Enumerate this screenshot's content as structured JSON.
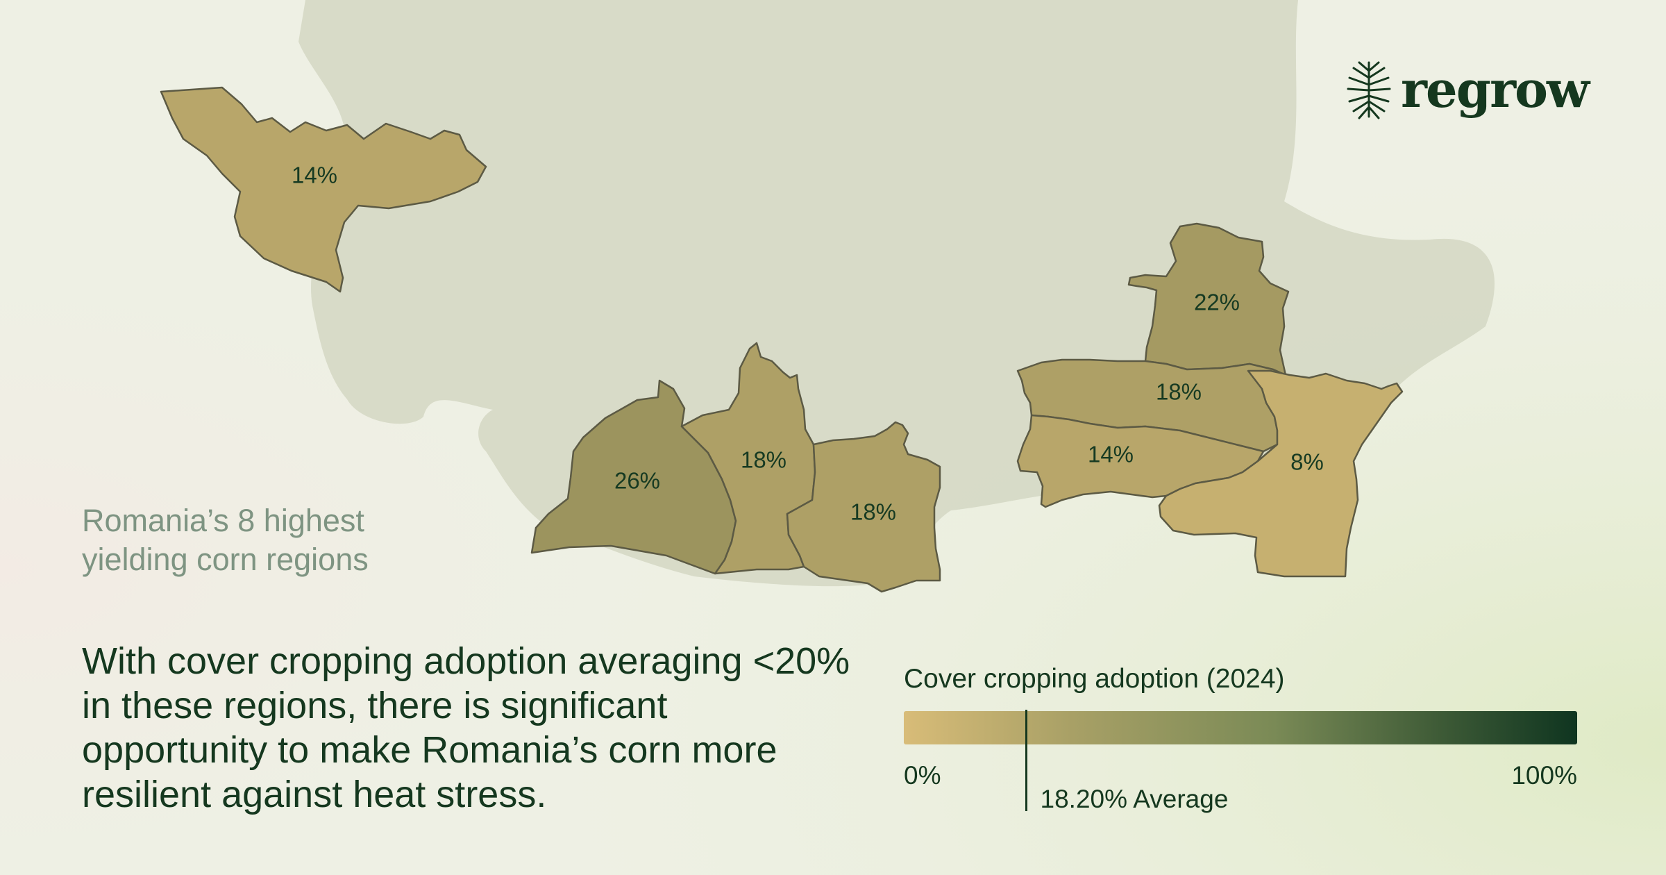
{
  "logo": {
    "text": "regrow",
    "icon": "tree-roots-icon"
  },
  "subtitle": "Romania’s 8 highest yielding corn regions",
  "headline": "With cover cropping adoption averaging <20% in these regions, there is significant opportunity to make Romania’s corn more resilient against heat stress.",
  "legend": {
    "title": "Cover cropping adoption (2024)",
    "min_label": "0%",
    "max_label": "100%",
    "average_label": "18.20% Average",
    "average_value": 18.2,
    "scale_min": 0,
    "scale_max": 100
  },
  "regions": [
    {
      "id": "nw",
      "label": "14%",
      "value": 14
    },
    {
      "id": "sw-a",
      "label": "26%",
      "value": 26
    },
    {
      "id": "sw-b",
      "label": "18%",
      "value": 18
    },
    {
      "id": "sw-c",
      "label": "18%",
      "value": 18
    },
    {
      "id": "se-north",
      "label": "22%",
      "value": 22
    },
    {
      "id": "se-mid",
      "label": "18%",
      "value": 18
    },
    {
      "id": "se-southwest",
      "label": "14%",
      "value": 14
    },
    {
      "id": "se-east",
      "label": "8%",
      "value": 8
    }
  ],
  "colors": {
    "text_dark": "#15381f",
    "text_muted": "#7e9482",
    "country_fill": "#d3d7c3",
    "scale_low": "#d8bc78",
    "scale_high": "#0f3520"
  }
}
